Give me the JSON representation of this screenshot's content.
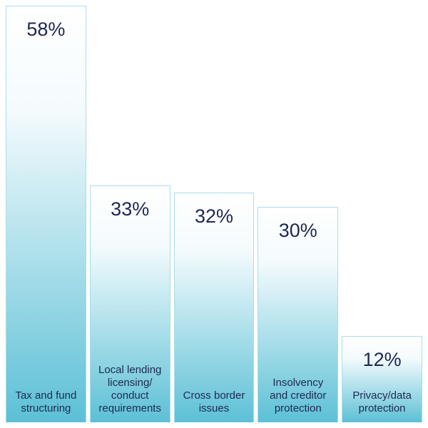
{
  "chart_data": {
    "type": "bar",
    "categories": [
      "Tax and fund\nstructuring",
      "Local lending\nlicensing/\nconduct\nrequirements",
      "Cross border\nissues",
      "Insolvency\nand creditor\nprotection",
      "Privacy/data\nprotection"
    ],
    "values": [
      58,
      33,
      32,
      30,
      12
    ],
    "value_labels": [
      "58%",
      "33%",
      "32%",
      "30%",
      "12%"
    ],
    "ylim": [
      0,
      58
    ]
  }
}
